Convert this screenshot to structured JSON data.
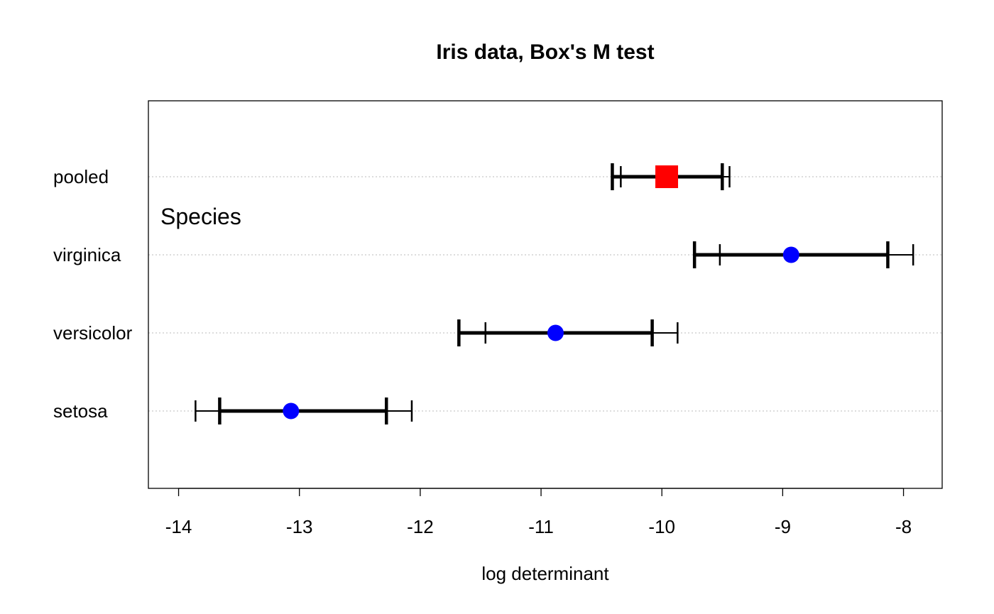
{
  "chart_data": {
    "type": "scatter",
    "title": "Iris data, Box's M test",
    "xlabel": "log determinant",
    "ylabel": "",
    "xlim": [
      -14.25,
      -7.68
    ],
    "xticks": [
      -14,
      -13,
      -12,
      -11,
      -10,
      -9,
      -8
    ],
    "xtick_labels": [
      "-14",
      "-13",
      "-12",
      "-11",
      "-10",
      "-9",
      "-8"
    ],
    "grid": "horizontal dotted lines at each category",
    "group_label": "Species",
    "categories": [
      "setosa",
      "versicolor",
      "virginica",
      "pooled"
    ],
    "points": [
      {
        "label": "setosa",
        "value": -13.07,
        "ci_inner": [
          -13.66,
          -12.28
        ],
        "ci_outer": [
          -13.86,
          -12.07
        ],
        "marker": "circle",
        "color": "#0000ff"
      },
      {
        "label": "versicolor",
        "value": -10.88,
        "ci_inner": [
          -11.68,
          -10.08
        ],
        "ci_outer": [
          -11.46,
          -9.87
        ],
        "marker": "circle",
        "color": "#0000ff"
      },
      {
        "label": "virginica",
        "value": -8.93,
        "ci_inner": [
          -9.73,
          -8.13
        ],
        "ci_outer": [
          -9.52,
          -7.92
        ],
        "marker": "circle",
        "color": "#0000ff"
      },
      {
        "label": "pooled",
        "value": -9.96,
        "ci_inner": [
          -10.41,
          -9.5
        ],
        "ci_outer": [
          -10.34,
          -9.44
        ],
        "marker": "square",
        "color": "#ff0000"
      }
    ]
  }
}
